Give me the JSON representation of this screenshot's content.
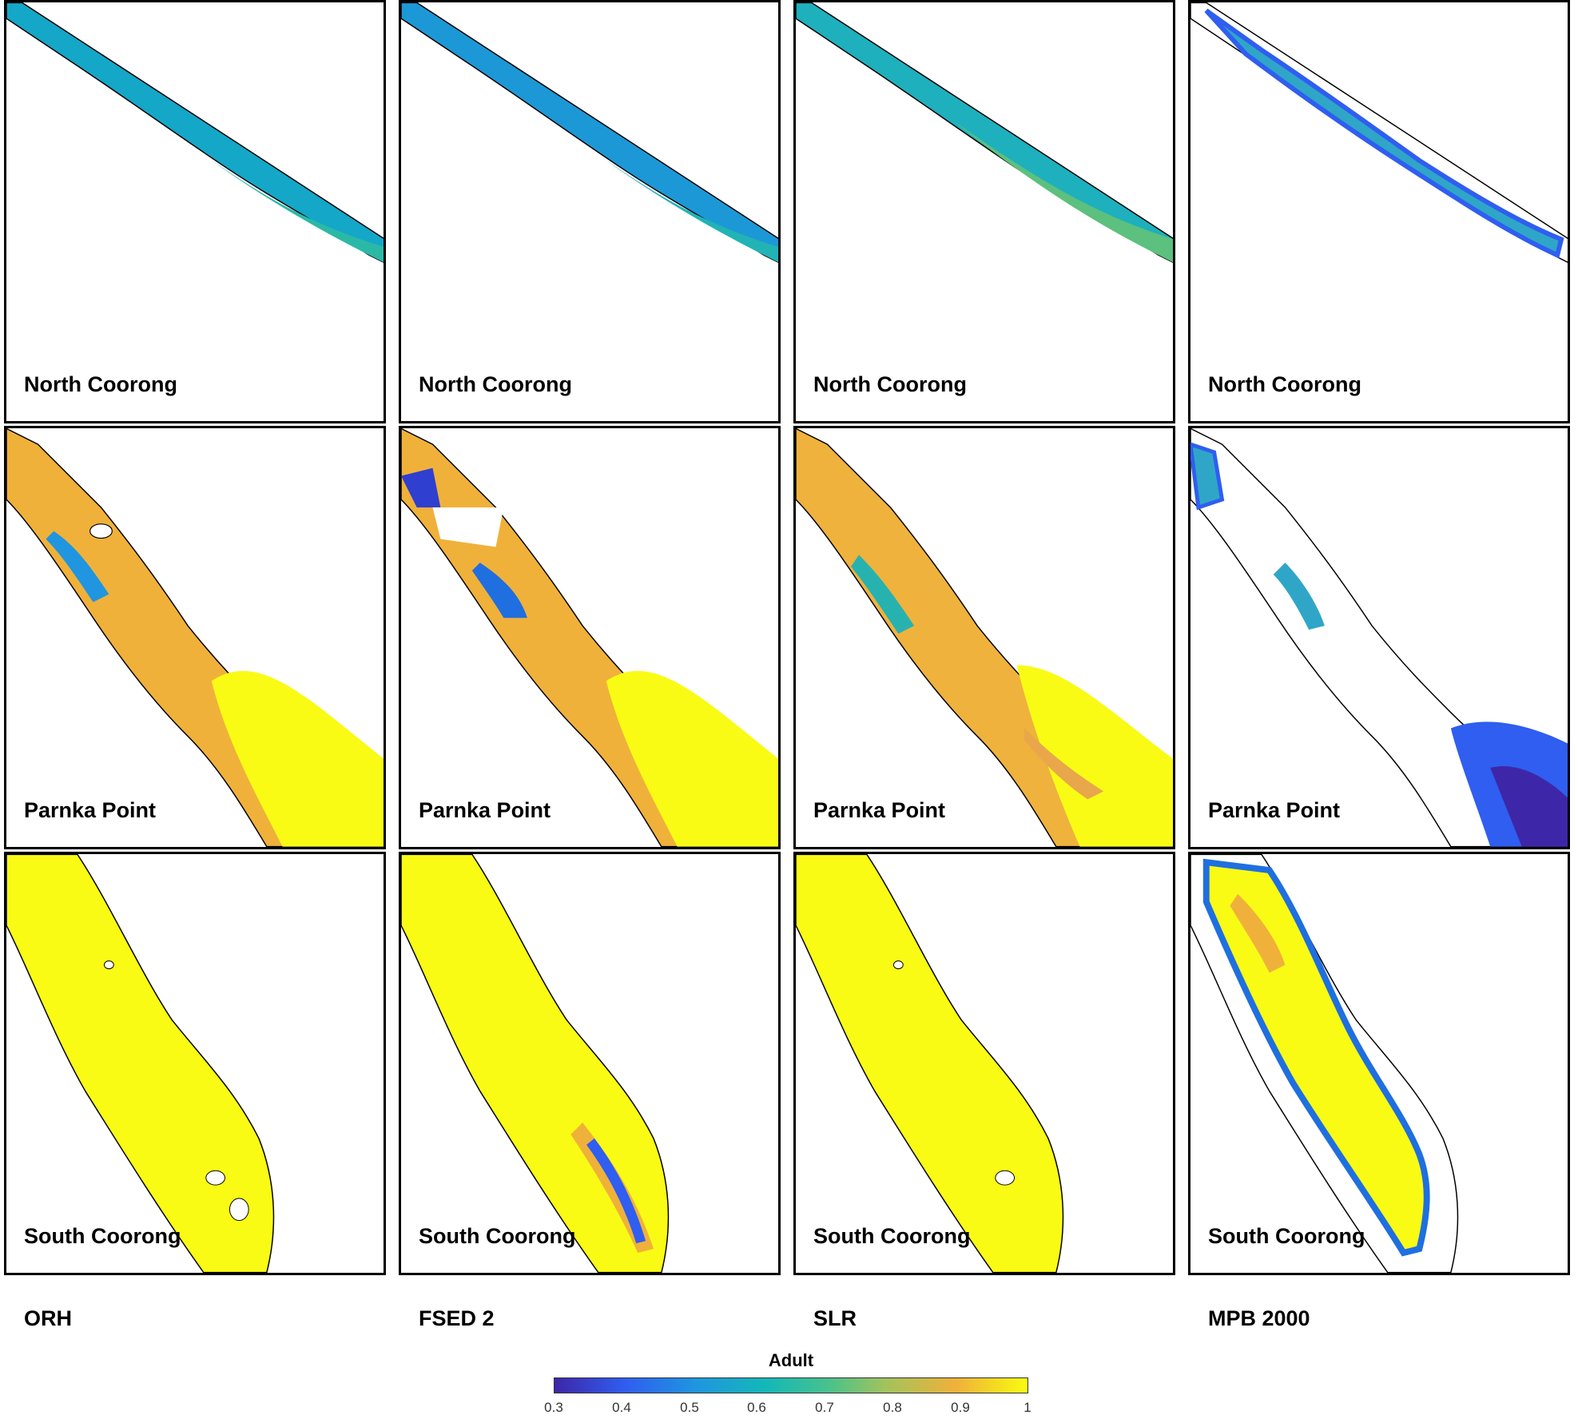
{
  "colors": {
    "v03": "#3e26a8",
    "v04": "#2f5ef0",
    "v05": "#1f96df",
    "v06": "#14b8b8",
    "v07": "#48c28c",
    "v08": "#a2c35c",
    "v09": "#f0b13a",
    "v10": "#f9fb15"
  },
  "regions": [
    "North Coorong",
    "Parnka Point",
    "South Coorong"
  ],
  "scenarios": [
    "ORH",
    "FSED 2",
    "SLR",
    "MPB 2000"
  ],
  "colorbar": {
    "title": "Adult",
    "ticks": [
      "0.3",
      "0.4",
      "0.5",
      "0.6",
      "0.7",
      "0.8",
      "0.9",
      "1"
    ]
  },
  "panels": [
    {
      "region": "North Coorong",
      "scenario": "ORH",
      "level": 0.62
    },
    {
      "region": "North Coorong",
      "scenario": "FSED 2",
      "level": 0.6
    },
    {
      "region": "North Coorong",
      "scenario": "SLR",
      "level": 0.68
    },
    {
      "region": "North Coorong",
      "scenario": "MPB 2000",
      "level": 0.65
    },
    {
      "region": "Parnka Point",
      "scenario": "ORH",
      "level": 0.92
    },
    {
      "region": "Parnka Point",
      "scenario": "FSED 2",
      "level": 0.93
    },
    {
      "region": "Parnka Point",
      "scenario": "SLR",
      "level": 0.88
    },
    {
      "region": "Parnka Point",
      "scenario": "MPB 2000",
      "level": 0.5
    },
    {
      "region": "South Coorong",
      "scenario": "ORH",
      "level": 1.0
    },
    {
      "region": "South Coorong",
      "scenario": "FSED 2",
      "level": 0.97
    },
    {
      "region": "South Coorong",
      "scenario": "SLR",
      "level": 1.0
    },
    {
      "region": "South Coorong",
      "scenario": "MPB 2000",
      "level": 0.75
    }
  ]
}
